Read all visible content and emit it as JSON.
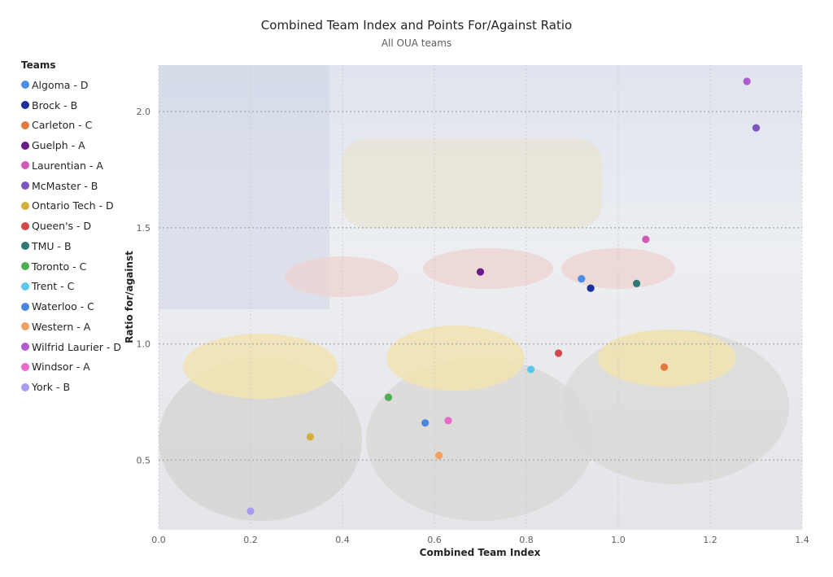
{
  "chart_data": {
    "type": "scatter",
    "title": "Combined Team Index and Points For/Against Ratio",
    "subtitle": "All OUA teams",
    "xlabel": "Combined Team Index",
    "ylabel": "Ratio for/against",
    "xlim": [
      0.0,
      1.4
    ],
    "ylim": [
      0.2,
      2.2
    ],
    "x_ticks": [
      "0.0",
      "0.2",
      "0.4",
      "0.6",
      "0.8",
      "1.0",
      "1.2",
      "1.4"
    ],
    "y_ticks": [
      "0.5",
      "1.0",
      "1.5",
      "2.0"
    ],
    "grid": true,
    "legend_title": "Teams",
    "legend_position": "left",
    "points": [
      {
        "name": "Algoma - D",
        "color": "#4a8ee8",
        "x": 0.92,
        "y": 1.28
      },
      {
        "name": "Brock - B",
        "color": "#1a2f9a",
        "x": 0.94,
        "y": 1.24
      },
      {
        "name": "Carleton - C",
        "color": "#e07a3d",
        "x": 1.1,
        "y": 0.9
      },
      {
        "name": "Guelph - A",
        "color": "#6b1a8c",
        "x": 0.7,
        "y": 1.31
      },
      {
        "name": "Laurentian - A",
        "color": "#d25ab4",
        "x": 1.06,
        "y": 1.45
      },
      {
        "name": "McMaster - B",
        "color": "#7c55c2",
        "x": 1.3,
        "y": 1.93
      },
      {
        "name": "Ontario Tech - D",
        "color": "#d4b03a",
        "x": 0.33,
        "y": 0.6
      },
      {
        "name": "Queen's - D",
        "color": "#d04a4a",
        "x": 0.87,
        "y": 0.96
      },
      {
        "name": "TMU - B",
        "color": "#2f7878",
        "x": 1.04,
        "y": 1.26
      },
      {
        "name": "Toronto - C",
        "color": "#4caf50",
        "x": 0.5,
        "y": 0.77
      },
      {
        "name": "Trent - C",
        "color": "#5bc7ea",
        "x": 0.81,
        "y": 0.89
      },
      {
        "name": "Waterloo - C",
        "color": "#4a86e0",
        "x": 0.58,
        "y": 0.66
      },
      {
        "name": "Western - A",
        "color": "#f0a060",
        "x": 0.61,
        "y": 0.52
      },
      {
        "name": "Wilfrid Laurier - D",
        "color": "#b25ad0",
        "x": 1.28,
        "y": 2.13
      },
      {
        "name": "Windsor - A",
        "color": "#e86acb",
        "x": 0.63,
        "y": 0.67
      },
      {
        "name": "York - B",
        "color": "#a89af0",
        "x": 0.2,
        "y": 0.28
      }
    ]
  }
}
